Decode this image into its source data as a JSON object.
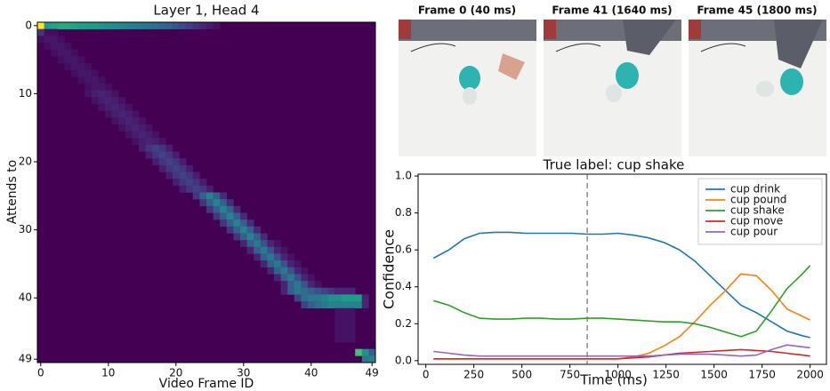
{
  "chart_data": [
    {
      "type": "heatmap",
      "title": "Layer 1, Head 4",
      "xlabel": "Video Frame ID",
      "ylabel": "Attends to",
      "xlim": [
        -0.5,
        49.5
      ],
      "ylim": [
        -0.5,
        49.5
      ],
      "xticks": [
        0,
        10,
        20,
        30,
        40,
        49
      ],
      "yticks": [
        0,
        10,
        20,
        30,
        40,
        49
      ],
      "vlim": [
        0,
        1
      ],
      "colormap": "viridis",
      "fill_value": 0,
      "bands": [
        {
          "row": 0,
          "start": 0,
          "values": [
            1.0,
            0.55,
            0.58,
            0.6,
            0.6,
            0.58,
            0.56,
            0.55,
            0.55,
            0.52,
            0.5,
            0.48,
            0.46,
            0.44,
            0.42,
            0.4,
            0.38,
            0.35,
            0.32,
            0.3,
            0.26,
            0.22,
            0.18,
            0.14,
            0.1,
            0.07,
            0.05
          ]
        },
        {
          "row": 1,
          "start": 0,
          "values": [
            0.15,
            0.04,
            0.03
          ]
        },
        {
          "row": 2,
          "start": 0,
          "values": [
            0.04,
            0.06,
            0.06,
            0.04
          ]
        },
        {
          "row": 3,
          "start": 1,
          "values": [
            0.04,
            0.06,
            0.06,
            0.04
          ]
        },
        {
          "row": 4,
          "start": 2,
          "values": [
            0.04,
            0.06,
            0.06,
            0.04
          ]
        },
        {
          "row": 5,
          "start": 3,
          "values": [
            0.04,
            0.06,
            0.06,
            0.04
          ]
        },
        {
          "row": 6,
          "start": 4,
          "values": [
            0.04,
            0.06,
            0.06,
            0.04
          ]
        },
        {
          "row": 7,
          "start": 5,
          "values": [
            0.04,
            0.06,
            0.06,
            0.04
          ]
        },
        {
          "row": 8,
          "start": 6,
          "values": [
            0.04,
            0.06,
            0.06,
            0.04
          ]
        },
        {
          "row": 9,
          "start": 7,
          "values": [
            0.04,
            0.06,
            0.06,
            0.04
          ]
        },
        {
          "row": 10,
          "start": 7,
          "values": [
            0.05,
            0.08,
            0.1,
            0.08,
            0.05
          ]
        },
        {
          "row": 11,
          "start": 8,
          "values": [
            0.05,
            0.08,
            0.1,
            0.08,
            0.05
          ]
        },
        {
          "row": 12,
          "start": 9,
          "values": [
            0.05,
            0.08,
            0.1,
            0.08,
            0.05
          ]
        },
        {
          "row": 13,
          "start": 10,
          "values": [
            0.05,
            0.08,
            0.1,
            0.08,
            0.05
          ]
        },
        {
          "row": 14,
          "start": 11,
          "values": [
            0.05,
            0.08,
            0.1,
            0.08,
            0.05
          ]
        },
        {
          "row": 15,
          "start": 12,
          "values": [
            0.05,
            0.08,
            0.1,
            0.08,
            0.05
          ]
        },
        {
          "row": 16,
          "start": 13,
          "values": [
            0.05,
            0.08,
            0.1,
            0.08,
            0.05
          ]
        },
        {
          "row": 17,
          "start": 14,
          "values": [
            0.05,
            0.08,
            0.1,
            0.08,
            0.05
          ]
        },
        {
          "row": 18,
          "start": 15,
          "values": [
            0.08,
            0.15,
            0.2,
            0.15,
            0.08
          ]
        },
        {
          "row": 19,
          "start": 16,
          "values": [
            0.08,
            0.15,
            0.2,
            0.15,
            0.08
          ]
        },
        {
          "row": 20,
          "start": 17,
          "values": [
            0.08,
            0.15,
            0.2,
            0.15,
            0.08
          ]
        },
        {
          "row": 21,
          "start": 18,
          "values": [
            0.08,
            0.15,
            0.2,
            0.15,
            0.08
          ]
        },
        {
          "row": 22,
          "start": 19,
          "values": [
            0.08,
            0.15,
            0.2,
            0.15,
            0.08
          ]
        },
        {
          "row": 23,
          "start": 20,
          "values": [
            0.08,
            0.15,
            0.2,
            0.15,
            0.08
          ]
        },
        {
          "row": 24,
          "start": 21,
          "values": [
            0.08,
            0.15,
            0.2,
            0.15,
            0.08
          ]
        },
        {
          "row": 25,
          "start": 23,
          "values": [
            0.15,
            0.3,
            0.45,
            0.3,
            0.12
          ]
        },
        {
          "row": 26,
          "start": 24,
          "values": [
            0.15,
            0.3,
            0.45,
            0.3,
            0.12
          ]
        },
        {
          "row": 27,
          "start": 25,
          "values": [
            0.15,
            0.3,
            0.45,
            0.3,
            0.12
          ]
        },
        {
          "row": 28,
          "start": 26,
          "values": [
            0.15,
            0.3,
            0.45,
            0.3,
            0.12
          ]
        },
        {
          "row": 29,
          "start": 27,
          "values": [
            0.15,
            0.3,
            0.45,
            0.3,
            0.12
          ]
        },
        {
          "row": 30,
          "start": 28,
          "values": [
            0.15,
            0.3,
            0.45,
            0.3,
            0.12
          ]
        },
        {
          "row": 31,
          "start": 29,
          "values": [
            0.15,
            0.3,
            0.45,
            0.3,
            0.12
          ]
        },
        {
          "row": 32,
          "start": 30,
          "values": [
            0.1,
            0.3,
            0.4,
            0.25,
            0.1,
            0.05
          ]
        },
        {
          "row": 33,
          "start": 31,
          "values": [
            0.1,
            0.3,
            0.4,
            0.25,
            0.1,
            0.05
          ]
        },
        {
          "row": 34,
          "start": 32,
          "values": [
            0.1,
            0.3,
            0.4,
            0.25,
            0.1,
            0.05
          ]
        },
        {
          "row": 35,
          "start": 33,
          "values": [
            0.1,
            0.3,
            0.4,
            0.25,
            0.1,
            0.05
          ]
        },
        {
          "row": 36,
          "start": 34,
          "values": [
            0.1,
            0.3,
            0.4,
            0.25,
            0.1,
            0.05
          ]
        },
        {
          "row": 37,
          "start": 35,
          "values": [
            0.1,
            0.3,
            0.4,
            0.25,
            0.1,
            0.05
          ]
        },
        {
          "row": 38,
          "start": 36,
          "values": [
            0.1,
            0.3,
            0.4,
            0.25,
            0.1,
            0.05
          ]
        },
        {
          "row": 39,
          "start": 36,
          "values": [
            0.1,
            0.3,
            0.4,
            0.35,
            0.3,
            0.25,
            0.2,
            0.15,
            0.1,
            0.1,
            0.1
          ]
        },
        {
          "row": 40,
          "start": 38,
          "values": [
            0.2,
            0.35,
            0.4,
            0.4,
            0.45,
            0.5,
            0.5,
            0.55,
            0.55,
            0.55,
            0.1
          ]
        },
        {
          "row": 41,
          "start": 39,
          "values": [
            0.2,
            0.3,
            0.35,
            0.4,
            0.45,
            0.45,
            0.45,
            0.45,
            0.45,
            0.1
          ]
        },
        {
          "row": 42,
          "start": 44,
          "values": [
            0.05,
            0.05,
            0.05
          ]
        },
        {
          "row": 43,
          "start": 44,
          "values": [
            0.05,
            0.05,
            0.05
          ]
        },
        {
          "row": 44,
          "start": 44,
          "values": [
            0.05,
            0.05,
            0.05
          ]
        },
        {
          "row": 45,
          "start": 44,
          "values": [
            0.05,
            0.05,
            0.05
          ]
        },
        {
          "row": 46,
          "start": 44,
          "values": [
            0.05,
            0.05,
            0.05
          ]
        },
        {
          "row": 48,
          "start": 47,
          "values": [
            0.7,
            0.5,
            0.3
          ]
        },
        {
          "row": 49,
          "start": 48,
          "values": [
            0.4,
            0.45
          ]
        }
      ]
    },
    {
      "type": "line",
      "title": "True label: cup shake",
      "xlabel": "Time (ms)",
      "ylabel": "Confidence",
      "xlim": [
        -40,
        2085
      ],
      "ylim": [
        -0.02,
        1.01
      ],
      "xticks": [
        0,
        250,
        500,
        750,
        1000,
        1250,
        1500,
        1750,
        2000
      ],
      "yticks": [
        {
          "value": 0,
          "label": "0.0"
        },
        0.2,
        0.4,
        0.6,
        0.8,
        {
          "value": 1,
          "label": "1.0"
        }
      ],
      "vline_x": 840,
      "legend": "upper right",
      "x": [
        40,
        120,
        200,
        280,
        360,
        440,
        520,
        600,
        680,
        760,
        840,
        920,
        1000,
        1080,
        1160,
        1240,
        1320,
        1400,
        1480,
        1560,
        1640,
        1720,
        1800,
        1880,
        1960,
        2000
      ],
      "series": [
        {
          "name": "cup drink",
          "color": "#1f77b4",
          "values": [
            0.555,
            0.6,
            0.66,
            0.69,
            0.695,
            0.695,
            0.69,
            0.69,
            0.69,
            0.69,
            0.685,
            0.685,
            0.69,
            0.68,
            0.665,
            0.64,
            0.6,
            0.54,
            0.46,
            0.38,
            0.3,
            0.26,
            0.21,
            0.16,
            0.135,
            0.125
          ]
        },
        {
          "name": "cup pound",
          "color": "#ff7f0e",
          "values": [
            0.01,
            0.01,
            0.01,
            0.01,
            0.01,
            0.01,
            0.01,
            0.01,
            0.01,
            0.01,
            0.01,
            0.01,
            0.01,
            0.02,
            0.04,
            0.08,
            0.13,
            0.21,
            0.3,
            0.38,
            0.47,
            0.46,
            0.38,
            0.28,
            0.24,
            0.22
          ]
        },
        {
          "name": "cup shake",
          "color": "#2ca02c",
          "values": [
            0.325,
            0.3,
            0.26,
            0.23,
            0.225,
            0.225,
            0.23,
            0.23,
            0.225,
            0.225,
            0.23,
            0.23,
            0.225,
            0.22,
            0.215,
            0.21,
            0.21,
            0.2,
            0.18,
            0.155,
            0.13,
            0.16,
            0.27,
            0.39,
            0.47,
            0.515
          ]
        },
        {
          "name": "cup move",
          "color": "#d62728",
          "values": [
            0.01,
            0.01,
            0.01,
            0.01,
            0.01,
            0.01,
            0.01,
            0.01,
            0.01,
            0.01,
            0.01,
            0.01,
            0.01,
            0.015,
            0.02,
            0.03,
            0.04,
            0.045,
            0.05,
            0.055,
            0.06,
            0.055,
            0.05,
            0.04,
            0.03,
            0.025
          ]
        },
        {
          "name": "cup pour",
          "color": "#9467bd",
          "values": [
            0.05,
            0.04,
            0.03,
            0.025,
            0.025,
            0.025,
            0.025,
            0.025,
            0.025,
            0.025,
            0.025,
            0.025,
            0.025,
            0.025,
            0.025,
            0.03,
            0.035,
            0.035,
            0.035,
            0.03,
            0.025,
            0.03,
            0.06,
            0.085,
            0.075,
            0.07
          ]
        }
      ]
    }
  ],
  "frames": [
    {
      "title": "Frame 0 (40 ms)"
    },
    {
      "title": "Frame 41 (1640 ms)"
    },
    {
      "title": "Frame 45 (1800 ms)"
    }
  ]
}
